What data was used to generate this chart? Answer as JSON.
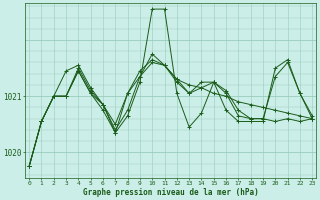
{
  "bg_color": "#cceee8",
  "grid_color_major": "#99ccbb",
  "grid_color_minor": "#bbddd5",
  "line_color": "#1a5c1a",
  "xlabel": "Graphe pression niveau de la mer (hPa)",
  "ylabel_ticks": [
    1020,
    1021
  ],
  "x_ticks": [
    0,
    1,
    2,
    3,
    4,
    5,
    6,
    7,
    8,
    9,
    10,
    11,
    12,
    13,
    14,
    15,
    16,
    17,
    18,
    19,
    20,
    21,
    22,
    23
  ],
  "ylim": [
    1019.55,
    1022.65
  ],
  "xlim": [
    -0.3,
    23.3
  ],
  "series": [
    [
      1019.75,
      1020.55,
      1021.0,
      1021.0,
      1021.45,
      1021.05,
      1020.85,
      1020.5,
      1021.05,
      1021.35,
      1021.75,
      1021.55,
      1021.3,
      1021.2,
      1021.15,
      1021.05,
      1021.0,
      1020.9,
      1020.85,
      1020.8,
      1020.75,
      1020.7,
      1020.65,
      1020.6
    ],
    [
      1019.75,
      1020.55,
      1021.0,
      1021.0,
      1021.45,
      1021.05,
      1020.75,
      1020.35,
      1020.65,
      1021.25,
      1022.55,
      1022.55,
      1021.05,
      1020.45,
      1020.7,
      1021.25,
      1020.75,
      1020.55,
      1020.55,
      1020.55,
      1021.5,
      1021.65,
      1021.05,
      1020.6
    ],
    [
      1019.75,
      1020.55,
      1021.0,
      1021.45,
      1021.55,
      1021.15,
      1020.85,
      1020.35,
      1021.05,
      1021.45,
      1021.65,
      1021.55,
      1021.25,
      1021.05,
      1021.25,
      1021.25,
      1021.05,
      1020.65,
      1020.6,
      1020.6,
      1020.55,
      1020.6,
      1020.55,
      1020.6
    ],
    [
      1019.75,
      1020.55,
      1021.0,
      1021.0,
      1021.5,
      1021.1,
      1020.85,
      1020.4,
      1020.75,
      1021.35,
      1021.6,
      1021.55,
      1021.3,
      1021.05,
      1021.15,
      1021.25,
      1021.1,
      1020.75,
      1020.6,
      1020.6,
      1021.35,
      1021.6,
      1021.05,
      1020.65
    ]
  ]
}
